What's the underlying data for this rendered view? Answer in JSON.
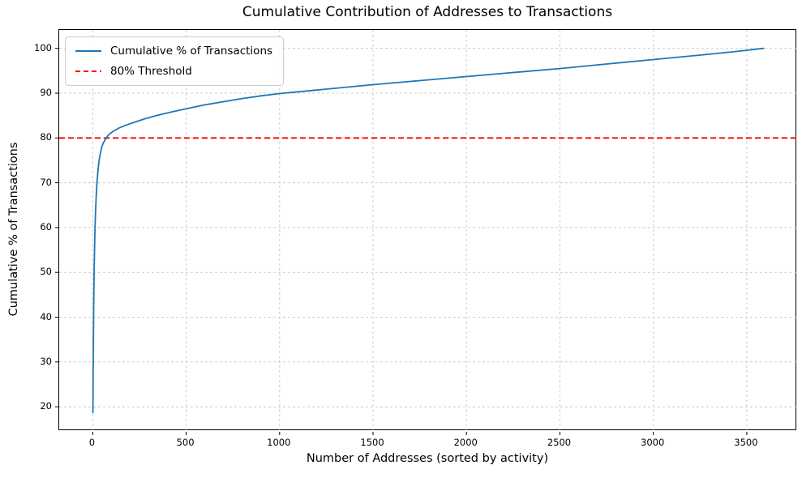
{
  "chart_data": {
    "type": "line",
    "title": "Cumulative Contribution of Addresses to Transactions",
    "xlabel": "Number of Addresses (sorted by activity)",
    "ylabel": "Cumulative % of Transactions",
    "xlim": [
      -179.5,
      3769.5
    ],
    "ylim": [
      14.6,
      104.1
    ],
    "xticks": [
      0,
      500,
      1000,
      1500,
      2000,
      2500,
      3000,
      3500
    ],
    "yticks": [
      20,
      30,
      40,
      50,
      60,
      70,
      80,
      90,
      100
    ],
    "grid": true,
    "legend_position": "upper-left",
    "series": [
      {
        "name": "Cumulative % of Transactions",
        "color": "#1f77b4",
        "style": "solid",
        "points": [
          [
            1,
            18.7
          ],
          [
            2,
            26.5
          ],
          [
            3,
            32.5
          ],
          [
            4,
            37.5
          ],
          [
            5,
            41.8
          ],
          [
            6,
            45.5
          ],
          [
            8,
            51.5
          ],
          [
            10,
            56.0
          ],
          [
            12,
            59.5
          ],
          [
            15,
            63.5
          ],
          [
            18,
            66.5
          ],
          [
            22,
            69.5
          ],
          [
            26,
            71.8
          ],
          [
            30,
            73.5
          ],
          [
            35,
            75.2
          ],
          [
            40,
            76.4
          ],
          [
            45,
            77.4
          ],
          [
            50,
            78.2
          ],
          [
            57,
            78.9
          ],
          [
            65,
            79.5
          ],
          [
            75,
            80.2
          ],
          [
            90,
            80.9
          ],
          [
            110,
            81.5
          ],
          [
            140,
            82.2
          ],
          [
            180,
            82.9
          ],
          [
            230,
            83.6
          ],
          [
            280,
            84.3
          ],
          [
            350,
            85.1
          ],
          [
            430,
            85.9
          ],
          [
            500,
            86.5
          ],
          [
            600,
            87.4
          ],
          [
            700,
            88.1
          ],
          [
            800,
            88.8
          ],
          [
            900,
            89.4
          ],
          [
            1000,
            89.9
          ],
          [
            1100,
            90.3
          ],
          [
            1250,
            90.9
          ],
          [
            1500,
            91.9
          ],
          [
            1750,
            92.8
          ],
          [
            2000,
            93.7
          ],
          [
            2250,
            94.6
          ],
          [
            2500,
            95.5
          ],
          [
            2750,
            96.5
          ],
          [
            3000,
            97.5
          ],
          [
            3250,
            98.5
          ],
          [
            3420,
            99.2
          ],
          [
            3590,
            100.0
          ]
        ]
      }
    ],
    "threshold": {
      "name": "80% Threshold",
      "value": 80,
      "color": "#ff0000",
      "style": "dashed"
    }
  }
}
